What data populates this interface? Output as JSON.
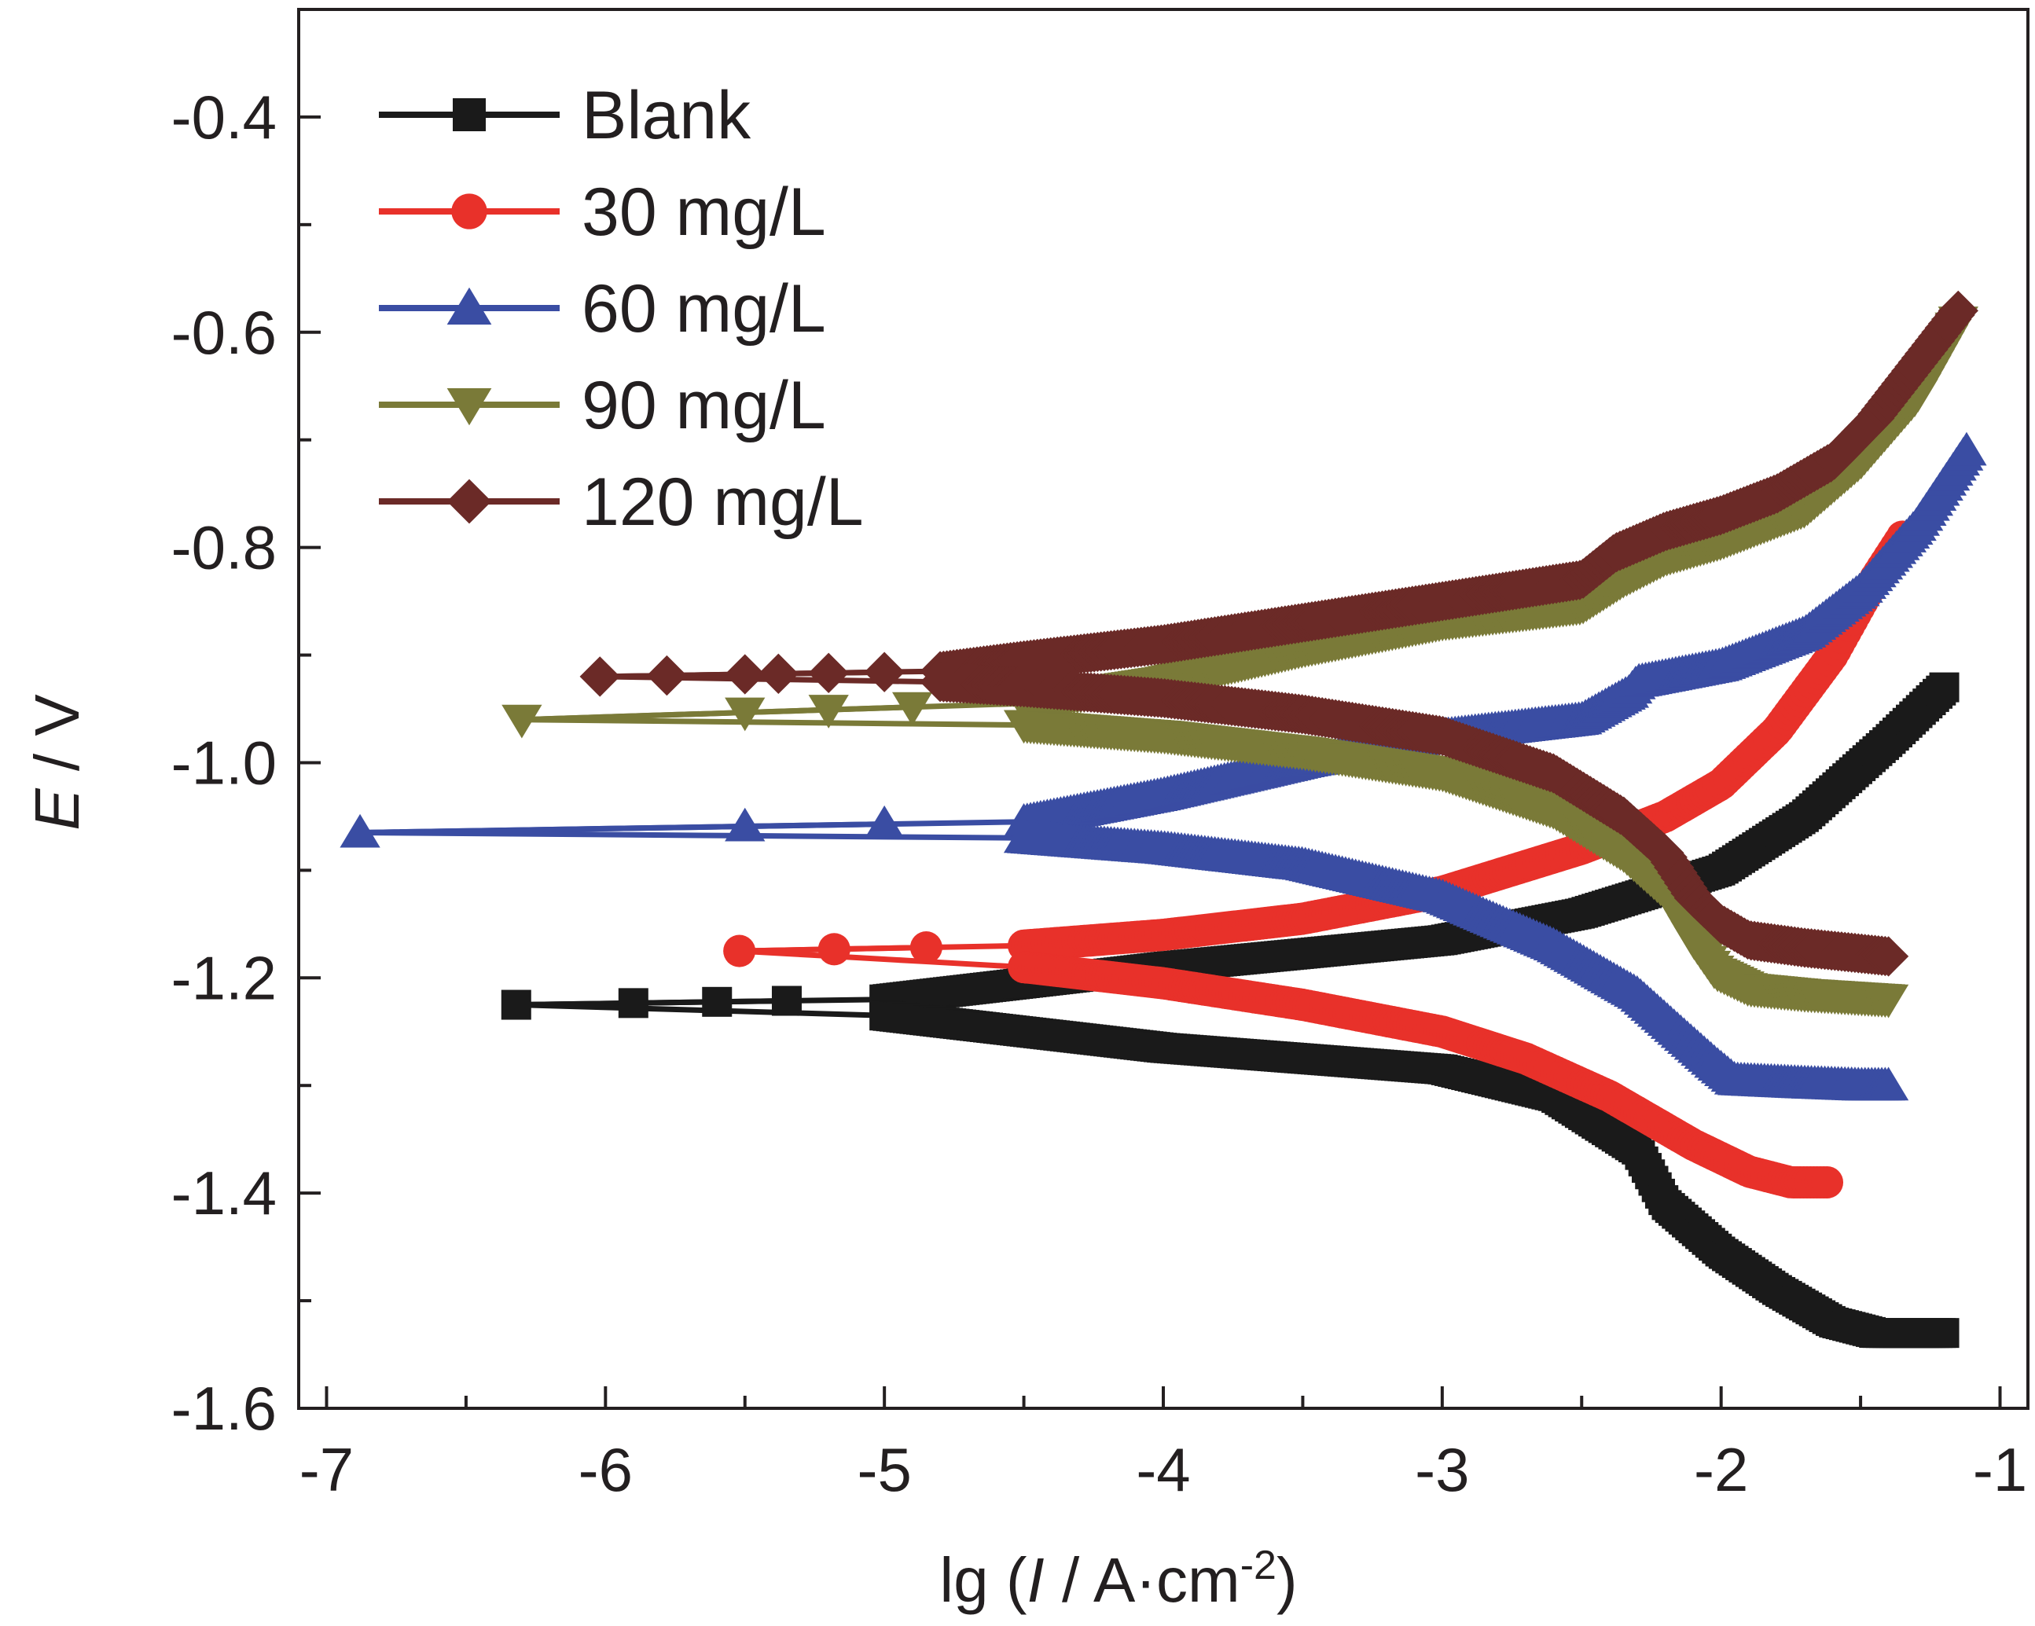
{
  "chart_data": {
    "type": "line",
    "title": "",
    "xlabel": {
      "prefix": "lg (",
      "italic": "I",
      "middle": " / A·cm",
      "sup": "-2",
      "suffix": ")"
    },
    "ylabel": {
      "italic": "E",
      "rest": " / V"
    },
    "xlim": [
      -7.1,
      -0.9
    ],
    "ylim": [
      -1.6,
      -0.3
    ],
    "x_ticks": [
      -7,
      -6,
      -5,
      -4,
      -3,
      -2,
      -1
    ],
    "x_tick_labels": [
      "-7",
      "-6",
      "-5",
      "-4",
      "-3",
      "-2",
      "-1"
    ],
    "y_ticks": [
      -1.6,
      -1.4,
      -1.2,
      -1.0,
      -0.8,
      -0.6,
      -0.4
    ],
    "y_tick_labels": [
      "-1.6",
      "-1.4",
      "-1.2",
      "-1.0",
      "-0.8",
      "-0.6",
      "-0.4"
    ],
    "grid": false,
    "legend_position": "top-left",
    "series": [
      {
        "name": "Blank",
        "color": "#1a1a1a",
        "marker": "square",
        "corr_x": -6.32,
        "corr_y": -1.225,
        "anodic": [
          [
            -5.0,
            -1.22
          ],
          [
            -4.0,
            -1.19
          ],
          [
            -3.0,
            -1.165
          ],
          [
            -2.5,
            -1.14
          ],
          [
            -2.0,
            -1.1
          ],
          [
            -1.7,
            -1.05
          ],
          [
            -1.4,
            -0.98
          ],
          [
            -1.2,
            -0.93
          ]
        ],
        "cathodic": [
          [
            -5.0,
            -1.235
          ],
          [
            -4.5,
            -1.25
          ],
          [
            -4.0,
            -1.265
          ],
          [
            -3.5,
            -1.275
          ],
          [
            -3.0,
            -1.285
          ],
          [
            -2.6,
            -1.31
          ],
          [
            -2.3,
            -1.36
          ],
          [
            -2.2,
            -1.41
          ],
          [
            -2.0,
            -1.455
          ],
          [
            -1.8,
            -1.49
          ],
          [
            -1.6,
            -1.52
          ],
          [
            -1.45,
            -1.53
          ],
          [
            -1.2,
            -1.53
          ]
        ],
        "sparse_x": [
          -5.9,
          -5.6,
          -5.35
        ]
      },
      {
        "name": "30 mg/L",
        "color": "#e8312a",
        "marker": "circle",
        "corr_x": -5.52,
        "corr_y": -1.175,
        "anodic": [
          [
            -4.5,
            -1.17
          ],
          [
            -4.0,
            -1.16
          ],
          [
            -3.5,
            -1.145
          ],
          [
            -3.0,
            -1.12
          ],
          [
            -2.5,
            -1.08
          ],
          [
            -2.2,
            -1.05
          ],
          [
            -2.0,
            -1.02
          ],
          [
            -1.8,
            -0.97
          ],
          [
            -1.6,
            -0.9
          ],
          [
            -1.45,
            -0.83
          ],
          [
            -1.35,
            -0.79
          ]
        ],
        "cathodic": [
          [
            -4.5,
            -1.19
          ],
          [
            -4.0,
            -1.205
          ],
          [
            -3.5,
            -1.225
          ],
          [
            -3.0,
            -1.25
          ],
          [
            -2.7,
            -1.275
          ],
          [
            -2.4,
            -1.31
          ],
          [
            -2.1,
            -1.355
          ],
          [
            -1.9,
            -1.38
          ],
          [
            -1.75,
            -1.39
          ],
          [
            -1.62,
            -1.39
          ]
        ],
        "sparse_x": [
          -5.18,
          -4.85
        ]
      },
      {
        "name": "60 mg/L",
        "color": "#3a4da3",
        "marker": "triangle-up",
        "corr_x": -6.88,
        "corr_y": -1.065,
        "anodic": [
          [
            -4.5,
            -1.055
          ],
          [
            -4.0,
            -1.03
          ],
          [
            -3.5,
            -1.0
          ],
          [
            -3.0,
            -0.975
          ],
          [
            -2.5,
            -0.96
          ],
          [
            -2.33,
            -0.935
          ],
          [
            -2.3,
            -0.925
          ],
          [
            -2.0,
            -0.91
          ],
          [
            -1.7,
            -0.88
          ],
          [
            -1.5,
            -0.84
          ],
          [
            -1.3,
            -0.78
          ],
          [
            -1.12,
            -0.71
          ]
        ],
        "cathodic": [
          [
            -4.5,
            -1.07
          ],
          [
            -4.0,
            -1.08
          ],
          [
            -3.5,
            -1.095
          ],
          [
            -3.0,
            -1.125
          ],
          [
            -2.6,
            -1.17
          ],
          [
            -2.3,
            -1.215
          ],
          [
            -2.15,
            -1.25
          ],
          [
            -2.02,
            -1.28
          ],
          [
            -1.95,
            -1.295
          ],
          [
            -1.7,
            -1.298
          ],
          [
            -1.5,
            -1.3
          ],
          [
            -1.4,
            -1.3
          ]
        ],
        "sparse_x": [
          -5.5,
          -5.0
        ]
      },
      {
        "name": "90 mg/L",
        "color": "#7a7a38",
        "marker": "triangle-down",
        "corr_x": -6.3,
        "corr_y": -0.96,
        "anodic": [
          [
            -4.5,
            -0.945
          ],
          [
            -4.0,
            -0.925
          ],
          [
            -3.5,
            -0.895
          ],
          [
            -3.0,
            -0.87
          ],
          [
            -2.5,
            -0.855
          ],
          [
            -2.35,
            -0.83
          ],
          [
            -2.2,
            -0.81
          ],
          [
            -2.0,
            -0.795
          ],
          [
            -1.7,
            -0.765
          ],
          [
            -1.5,
            -0.72
          ],
          [
            -1.3,
            -0.66
          ],
          [
            -1.15,
            -0.59
          ]
        ],
        "cathodic": [
          [
            -4.5,
            -0.965
          ],
          [
            -4.0,
            -0.975
          ],
          [
            -3.5,
            -0.99
          ],
          [
            -3.0,
            -1.01
          ],
          [
            -2.6,
            -1.045
          ],
          [
            -2.35,
            -1.085
          ],
          [
            -2.2,
            -1.12
          ],
          [
            -2.1,
            -1.165
          ],
          [
            -2.02,
            -1.195
          ],
          [
            -1.9,
            -1.21
          ],
          [
            -1.7,
            -1.215
          ],
          [
            -1.4,
            -1.22
          ]
        ],
        "sparse_x": [
          -5.5,
          -5.2,
          -4.9
        ]
      },
      {
        "name": "120 mg/L",
        "color": "#6b2a27",
        "marker": "diamond",
        "corr_x": -6.02,
        "corr_y": -0.92,
        "anodic": [
          [
            -4.8,
            -0.915
          ],
          [
            -4.5,
            -0.905
          ],
          [
            -4.0,
            -0.89
          ],
          [
            -3.5,
            -0.87
          ],
          [
            -3.0,
            -0.85
          ],
          [
            -2.5,
            -0.83
          ],
          [
            -2.38,
            -0.805
          ],
          [
            -2.2,
            -0.785
          ],
          [
            -2.0,
            -0.77
          ],
          [
            -1.8,
            -0.75
          ],
          [
            -1.6,
            -0.72
          ],
          [
            -1.45,
            -0.68
          ],
          [
            -1.3,
            -0.63
          ],
          [
            -1.15,
            -0.58
          ]
        ],
        "cathodic": [
          [
            -4.8,
            -0.925
          ],
          [
            -4.5,
            -0.93
          ],
          [
            -4.0,
            -0.94
          ],
          [
            -3.5,
            -0.955
          ],
          [
            -3.0,
            -0.975
          ],
          [
            -2.6,
            -1.01
          ],
          [
            -2.35,
            -1.05
          ],
          [
            -2.2,
            -1.085
          ],
          [
            -2.1,
            -1.125
          ],
          [
            -2.0,
            -1.15
          ],
          [
            -1.9,
            -1.165
          ],
          [
            -1.7,
            -1.172
          ],
          [
            -1.4,
            -1.18
          ]
        ],
        "sparse_x": [
          -5.78,
          -5.5,
          -5.38,
          -5.2,
          -5.0
        ]
      }
    ]
  }
}
